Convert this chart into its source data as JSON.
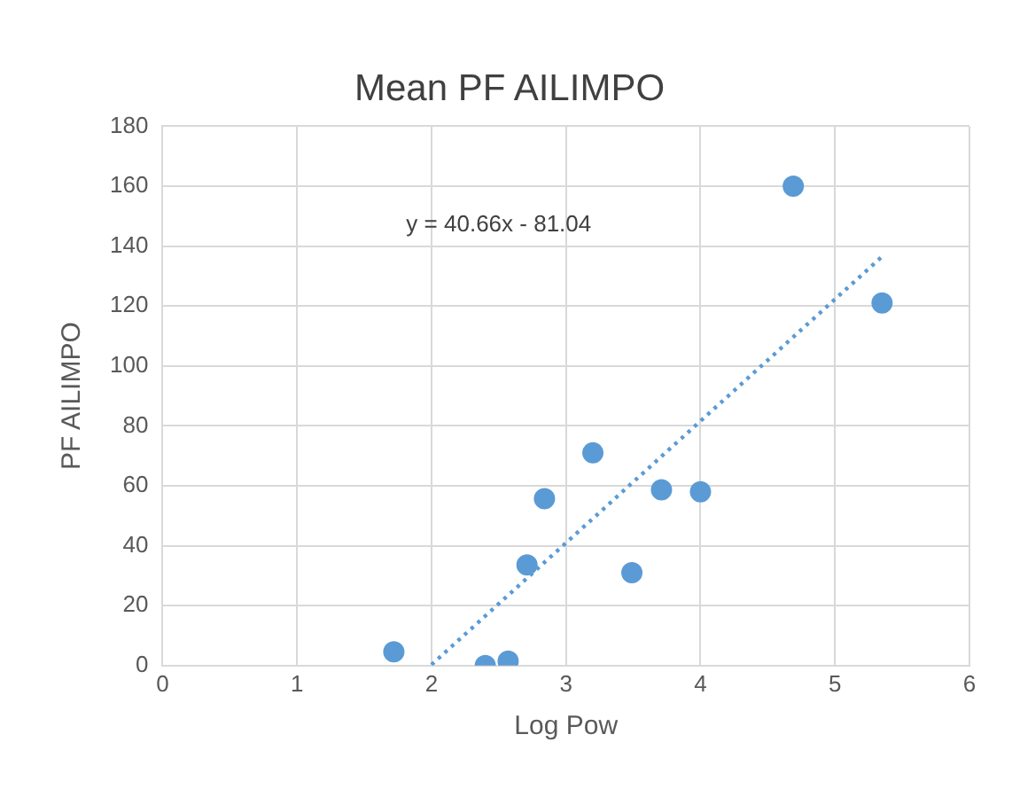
{
  "chart_data": {
    "type": "scatter",
    "title": "Mean PF AILIMPO",
    "xlabel": "Log Pow",
    "ylabel": "PF AILIMPO",
    "series": [
      {
        "type": "scatter",
        "color": "#5b9bd5",
        "x": [
          1.72,
          2.4,
          2.57,
          2.71,
          2.84,
          3.2,
          3.49,
          3.71,
          4.0,
          4.69,
          5.35
        ],
        "values": [
          4.6,
          0,
          1.5,
          33.6,
          55.7,
          71,
          31,
          58.7,
          58,
          160,
          121
        ],
        "marker": "circle"
      },
      {
        "type": "line",
        "color": "#5b9bd5",
        "x": [
          2.0,
          5.37
        ],
        "values": [
          0.3,
          137.3
        ],
        "line_style": "dotted",
        "marker": "none"
      }
    ],
    "annotations": [
      "y = 40.66x - 81.04"
    ],
    "xlim": [
      0,
      6
    ],
    "xticks": [
      0,
      1,
      2,
      3,
      4,
      5,
      6
    ],
    "ylim": [
      0,
      180
    ],
    "yticks": [
      0,
      20,
      40,
      60,
      80,
      100,
      120,
      140,
      160,
      180
    ],
    "grid": true,
    "legend": false
  }
}
